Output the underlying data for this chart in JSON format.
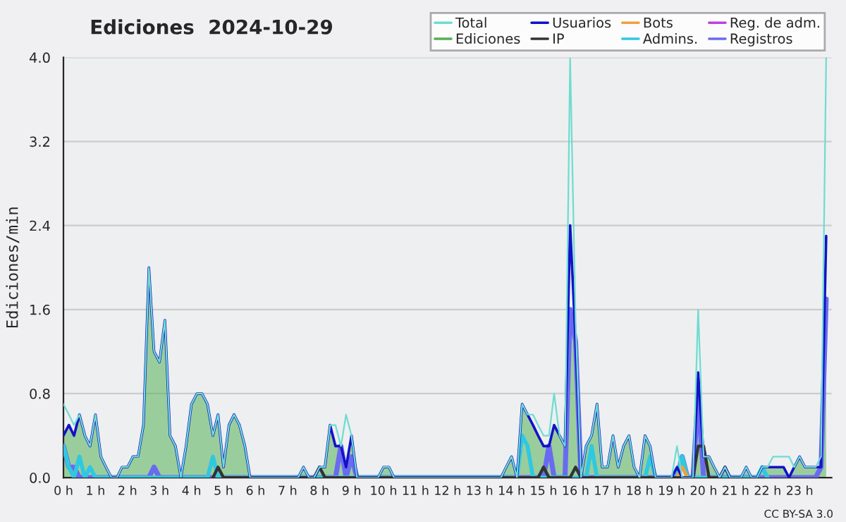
{
  "chart_data": {
    "type": "line",
    "title": "Ediciones  2024-10-29",
    "ylabel": "Ediciones/min",
    "x": [
      0,
      0.17,
      0.33,
      0.5,
      0.67,
      0.83,
      1,
      1.17,
      1.33,
      1.5,
      1.67,
      1.83,
      2,
      2.17,
      2.33,
      2.5,
      2.67,
      2.83,
      3,
      3.17,
      3.33,
      3.5,
      3.67,
      3.83,
      4,
      4.17,
      4.33,
      4.5,
      4.67,
      4.83,
      5,
      5.17,
      5.33,
      5.5,
      5.67,
      5.83,
      6,
      6.17,
      6.33,
      6.5,
      6.67,
      6.83,
      7,
      7.17,
      7.33,
      7.5,
      7.67,
      7.83,
      8,
      8.17,
      8.33,
      8.5,
      8.67,
      8.83,
      9,
      9.17,
      9.33,
      9.5,
      9.67,
      9.83,
      10,
      10.17,
      10.33,
      10.5,
      10.67,
      10.83,
      11,
      11.17,
      11.33,
      11.5,
      11.67,
      11.83,
      12,
      12.17,
      12.33,
      12.5,
      12.67,
      12.83,
      13,
      13.17,
      13.33,
      13.5,
      13.67,
      13.83,
      14,
      14.17,
      14.33,
      14.5,
      14.67,
      14.83,
      15,
      15.17,
      15.33,
      15.5,
      15.67,
      15.83,
      16,
      16.17,
      16.33,
      16.5,
      16.67,
      16.83,
      17,
      17.17,
      17.33,
      17.5,
      17.67,
      17.83,
      18,
      18.17,
      18.33,
      18.5,
      18.67,
      18.83,
      19,
      19.17,
      19.33,
      19.5,
      19.67,
      19.83,
      20,
      20.17,
      20.33,
      20.5,
      20.67,
      20.83,
      21,
      21.17,
      21.33,
      21.5,
      21.67,
      21.83,
      22,
      22.17,
      22.33,
      22.5,
      22.67,
      22.83,
      23,
      23.17,
      23.33,
      23.5,
      23.67,
      23.83
    ],
    "series": [
      {
        "name": "Total",
        "type": "line",
        "color": "#6fdcd0",
        "values": [
          0.7,
          0.6,
          0.5,
          0.6,
          0.4,
          0.3,
          0.6,
          0.2,
          0.1,
          0,
          0,
          0.1,
          0.1,
          0.2,
          0.2,
          0.5,
          2.0,
          1.2,
          1.1,
          1.5,
          0.4,
          0.3,
          0,
          0.3,
          0.7,
          0.8,
          0.8,
          0.7,
          0.4,
          0.6,
          0.1,
          0.5,
          0.6,
          0.5,
          0.3,
          0,
          0,
          0,
          0,
          0,
          0,
          0,
          0,
          0,
          0,
          0.1,
          0,
          0,
          0.1,
          0.1,
          0.5,
          0.5,
          0.3,
          0.6,
          0.4,
          0,
          0,
          0,
          0,
          0,
          0.1,
          0.1,
          0,
          0,
          0,
          0,
          0,
          0,
          0,
          0,
          0,
          0,
          0,
          0,
          0,
          0,
          0,
          0,
          0,
          0,
          0,
          0,
          0,
          0.1,
          0.2,
          0,
          0.7,
          0.6,
          0.6,
          0.5,
          0.4,
          0.4,
          0.8,
          0.4,
          0.3,
          4.0,
          1.5,
          0,
          0.3,
          0.4,
          0.7,
          0.1,
          0.1,
          0.4,
          0.1,
          0.3,
          0.4,
          0.1,
          0,
          0.4,
          0.3,
          0,
          0,
          0,
          0,
          0.3,
          0,
          0,
          0,
          1.6,
          0.2,
          0.2,
          0.1,
          0,
          0.1,
          0,
          0,
          0,
          0.1,
          0,
          0,
          0.1,
          0.1,
          0.2,
          0.2,
          0.2,
          0.2,
          0.1,
          0.2,
          0.1,
          0.1,
          0.1,
          0.2,
          4.0
        ]
      },
      {
        "name": "Ediciones",
        "type": "area",
        "color": "#55b055",
        "values": [
          0.4,
          0.5,
          0.4,
          0.6,
          0.4,
          0.3,
          0.6,
          0.2,
          0.1,
          0,
          0,
          0.1,
          0.1,
          0.2,
          0.2,
          0.5,
          2.0,
          1.2,
          1.1,
          1.5,
          0.4,
          0.3,
          0,
          0.3,
          0.7,
          0.8,
          0.8,
          0.7,
          0.4,
          0.6,
          0.1,
          0.5,
          0.6,
          0.5,
          0.3,
          0,
          0,
          0,
          0,
          0,
          0,
          0,
          0,
          0,
          0,
          0.1,
          0,
          0,
          0.1,
          0.1,
          0.5,
          0.3,
          0.3,
          0.1,
          0.4,
          0,
          0,
          0,
          0,
          0,
          0.1,
          0.1,
          0,
          0,
          0,
          0,
          0,
          0,
          0,
          0,
          0,
          0,
          0,
          0,
          0,
          0,
          0,
          0,
          0,
          0,
          0,
          0,
          0,
          0.1,
          0.2,
          0,
          0.7,
          0.6,
          0.5,
          0.4,
          0.3,
          0.3,
          0.5,
          0.4,
          0.3,
          1.6,
          1.3,
          0,
          0.3,
          0.4,
          0.7,
          0.1,
          0.1,
          0.4,
          0.1,
          0.3,
          0.4,
          0.1,
          0,
          0.4,
          0.3,
          0,
          0,
          0,
          0,
          0.1,
          0,
          0,
          0,
          0.6,
          0.2,
          0.2,
          0.1,
          0,
          0.1,
          0,
          0,
          0,
          0.1,
          0,
          0,
          0.1,
          0.1,
          0.1,
          0.1,
          0.1,
          0,
          0.1,
          0.2,
          0.1,
          0.1,
          0.1,
          0.1,
          1.0
        ]
      },
      {
        "name": "Usuarios",
        "type": "line",
        "color": "#1212c8",
        "values": [
          0.4,
          0.5,
          0.4,
          0.6,
          0.4,
          0.3,
          0.6,
          0.2,
          0.1,
          0,
          0,
          0.1,
          0.1,
          0.2,
          0.2,
          0.5,
          2.0,
          1.2,
          1.1,
          1.5,
          0.4,
          0.3,
          0,
          0.3,
          0.7,
          0.8,
          0.8,
          0.7,
          0.4,
          0.6,
          0.1,
          0.5,
          0.6,
          0.5,
          0.3,
          0,
          0,
          0,
          0,
          0,
          0,
          0,
          0,
          0,
          0,
          0.1,
          0,
          0,
          0.1,
          0.1,
          0.5,
          0.3,
          0.3,
          0.1,
          0.4,
          0,
          0,
          0,
          0,
          0,
          0.1,
          0.1,
          0,
          0,
          0,
          0,
          0,
          0,
          0,
          0,
          0,
          0,
          0,
          0,
          0,
          0,
          0,
          0,
          0,
          0,
          0,
          0,
          0,
          0.1,
          0.2,
          0,
          0.7,
          0.6,
          0.5,
          0.4,
          0.3,
          0.3,
          0.5,
          0.4,
          0.3,
          2.4,
          1.3,
          0,
          0.3,
          0.4,
          0.7,
          0.1,
          0.1,
          0.4,
          0.1,
          0.3,
          0.4,
          0.1,
          0,
          0.4,
          0.3,
          0,
          0,
          0,
          0,
          0.1,
          0,
          0,
          0,
          1.0,
          0.2,
          0.2,
          0.1,
          0,
          0.1,
          0,
          0,
          0,
          0.1,
          0,
          0,
          0.1,
          0.1,
          0.1,
          0.1,
          0.1,
          0,
          0.1,
          0.2,
          0.1,
          0.1,
          0.1,
          0.1,
          2.3
        ]
      },
      {
        "name": "IP",
        "type": "line",
        "color": "#333333",
        "x": [
          4.67,
          4.83,
          5.0,
          7.83,
          8.0,
          8.17,
          14.83,
          15.0,
          15.17,
          15.83,
          16.0,
          16.17,
          19.67,
          19.83,
          20.0,
          20.17,
          20.5,
          20.67,
          20.83
        ],
        "values": [
          0,
          0.1,
          0,
          0,
          0.1,
          0,
          0,
          0.1,
          0,
          0,
          0.1,
          0,
          0,
          0.3,
          0.3,
          0,
          0,
          0.1,
          0
        ]
      },
      {
        "name": "Bots",
        "type": "line",
        "color": "#f0a040",
        "x": [
          19.17,
          19.33,
          19.5
        ],
        "values": [
          0,
          0.1,
          0
        ]
      },
      {
        "name": "Admins.",
        "type": "line",
        "color": "#30c8e0",
        "x": [
          0,
          0.17,
          0.33,
          0.5,
          0.67,
          0.83,
          1.0,
          4.5,
          4.67,
          4.83,
          14.17,
          14.33,
          14.5,
          14.67,
          16.33,
          16.5,
          16.67,
          18.17,
          18.33,
          18.5,
          19.17,
          19.33,
          19.5,
          21.67,
          21.83,
          22.0
        ],
        "values": [
          0.3,
          0.1,
          0,
          0.2,
          0,
          0.1,
          0,
          0,
          0.2,
          0,
          0,
          0.4,
          0.3,
          0,
          0,
          0.3,
          0,
          0,
          0.2,
          0,
          0,
          0.2,
          0,
          0,
          0.1,
          0
        ]
      },
      {
        "name": "Reg. de adm.",
        "type": "line",
        "color": "#c040e0",
        "values": [
          null,
          null,
          null,
          null,
          null,
          null,
          null,
          null,
          null,
          null,
          null,
          null,
          null,
          null,
          null,
          null,
          null,
          null,
          null,
          null,
          null,
          null,
          null,
          null,
          null,
          null,
          null,
          null,
          null,
          null,
          null,
          null,
          null,
          null,
          null,
          null,
          null,
          null,
          null,
          null,
          null,
          null,
          null,
          null,
          null,
          null,
          null,
          null,
          null,
          null,
          null,
          null,
          null,
          null,
          null,
          null,
          null,
          null,
          null,
          null,
          null,
          null,
          null,
          null,
          null,
          null,
          null,
          null,
          null,
          null,
          null,
          null,
          null,
          null,
          null,
          null,
          null,
          null,
          null,
          null,
          null,
          null,
          null,
          null,
          null,
          null,
          null,
          null,
          null,
          null,
          null,
          null,
          null,
          null,
          null,
          null,
          null,
          null,
          null,
          null,
          null,
          null,
          null,
          null,
          null,
          null,
          null,
          null,
          null,
          null,
          null,
          null,
          null,
          null,
          null,
          null,
          null,
          null,
          null,
          null,
          null,
          null,
          null,
          null,
          null,
          null,
          null,
          null,
          null,
          null,
          null,
          null,
          null,
          null,
          null,
          null,
          null,
          null,
          null,
          null,
          null,
          null,
          null,
          null
        ]
      },
      {
        "name": "Registros",
        "type": "line",
        "color": "#6a6af0",
        "x": [
          0,
          0.17,
          0.33,
          0.5,
          0.67,
          2.67,
          2.83,
          3.0,
          8.5,
          8.67,
          8.83,
          9.0,
          9.17,
          15.0,
          15.17,
          15.33,
          15.67,
          15.83,
          16.0,
          16.17,
          19.17,
          19.33,
          19.5,
          19.67,
          19.83,
          20.0,
          23.5,
          23.67,
          23.83
        ],
        "values": [
          0.3,
          0.1,
          0.1,
          0,
          0,
          0,
          0.1,
          0,
          0,
          0.3,
          0,
          0.2,
          0,
          0,
          0.3,
          0,
          0,
          1.6,
          1.3,
          0,
          0,
          0.2,
          0,
          0,
          0.8,
          0,
          0,
          0.1,
          1.7
        ]
      }
    ],
    "xlim": [
      0,
      24
    ],
    "xticks": [
      {
        "value": 0,
        "label": "0 h"
      },
      {
        "value": 1,
        "label": "1 h"
      },
      {
        "value": 2,
        "label": "2 h"
      },
      {
        "value": 3,
        "label": "3 h"
      },
      {
        "value": 4,
        "label": "4 h"
      },
      {
        "value": 5,
        "label": "5 h"
      },
      {
        "value": 6,
        "label": "6 h"
      },
      {
        "value": 7,
        "label": "7 h"
      },
      {
        "value": 8,
        "label": "8 h"
      },
      {
        "value": 9,
        "label": "9 h"
      },
      {
        "value": 10,
        "label": "10 h"
      },
      {
        "value": 11,
        "label": "11 h"
      },
      {
        "value": 12,
        "label": "12 h"
      },
      {
        "value": 13,
        "label": "13 h"
      },
      {
        "value": 14,
        "label": "14 h"
      },
      {
        "value": 15,
        "label": "15 h"
      },
      {
        "value": 16,
        "label": "16 h"
      },
      {
        "value": 17,
        "label": "17 h"
      },
      {
        "value": 18,
        "label": "18 h"
      },
      {
        "value": 19,
        "label": "19 h"
      },
      {
        "value": 20,
        "label": "20 h"
      },
      {
        "value": 21,
        "label": "21 h"
      },
      {
        "value": 22,
        "label": "22 h"
      },
      {
        "value": 23,
        "label": "23 h"
      }
    ],
    "ylim": [
      0,
      4.0
    ],
    "yticks": [
      {
        "value": 0,
        "label": "0.0"
      },
      {
        "value": 0.8,
        "label": "0.8"
      },
      {
        "value": 1.6,
        "label": "1.6"
      },
      {
        "value": 2.4,
        "label": "2.4"
      },
      {
        "value": 3.2,
        "label": "3.2"
      },
      {
        "value": 4.0,
        "label": "4.0"
      }
    ],
    "grid": "y",
    "legend": "top right",
    "annotations": [
      "CC BY-SA 3.0"
    ]
  }
}
